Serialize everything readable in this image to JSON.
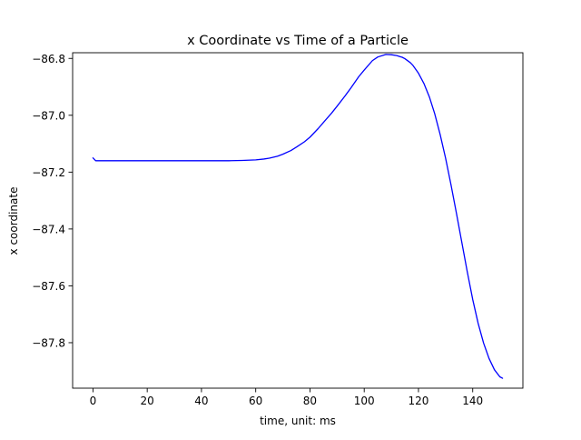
{
  "chart_data": {
    "type": "line",
    "title": "x Coordinate vs Time of a Particle",
    "xlabel": "time, unit: ms",
    "ylabel": "x coordinate",
    "xlim": [
      -7.5,
      158.5
    ],
    "ylim": [
      -87.96,
      -86.78
    ],
    "xticks": [
      0,
      20,
      40,
      60,
      80,
      100,
      120,
      140
    ],
    "xtick_labels": [
      "0",
      "20",
      "40",
      "60",
      "80",
      "100",
      "120",
      "140"
    ],
    "yticks": [
      -86.8,
      -87.0,
      -87.2,
      -87.4,
      -87.6,
      -87.8
    ],
    "ytick_labels": [
      "−86.8",
      "−87.0",
      "−87.2",
      "−87.4",
      "−87.6",
      "−87.8"
    ],
    "grid": false,
    "series": [
      {
        "color": "#0000ff",
        "x": [
          0,
          1,
          2,
          5,
          10,
          20,
          30,
          40,
          50,
          55,
          60,
          63,
          65,
          68,
          70,
          73,
          75,
          78,
          80,
          83,
          85,
          88,
          90,
          93,
          95,
          98,
          100,
          103,
          105,
          108,
          110,
          112,
          113,
          114,
          115,
          117,
          118,
          120,
          122,
          124,
          126,
          128,
          130,
          132,
          134,
          136,
          138,
          140,
          142,
          144,
          146,
          148,
          150,
          151
        ],
        "y": [
          -87.15,
          -87.16,
          -87.16,
          -87.16,
          -87.16,
          -87.16,
          -87.16,
          -87.16,
          -87.16,
          -87.159,
          -87.157,
          -87.154,
          -87.151,
          -87.144,
          -87.137,
          -87.124,
          -87.112,
          -87.093,
          -87.077,
          -87.047,
          -87.025,
          -86.992,
          -86.968,
          -86.931,
          -86.905,
          -86.864,
          -86.841,
          -86.808,
          -86.795,
          -86.786,
          -86.787,
          -86.79,
          -86.793,
          -86.796,
          -86.801,
          -86.815,
          -86.825,
          -86.852,
          -86.888,
          -86.935,
          -86.995,
          -87.068,
          -87.151,
          -87.245,
          -87.345,
          -87.448,
          -87.551,
          -87.648,
          -87.732,
          -87.801,
          -87.855,
          -87.895,
          -87.92,
          -87.925
        ]
      }
    ]
  }
}
